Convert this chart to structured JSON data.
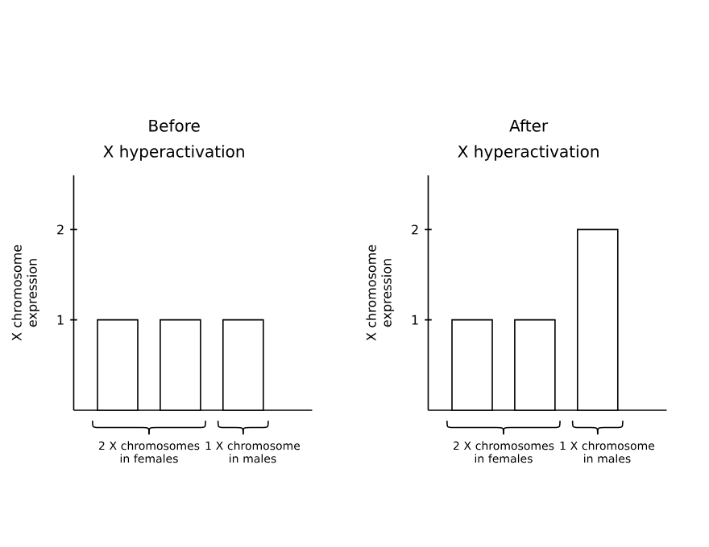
{
  "chart_data": [
    {
      "type": "bar",
      "title": "Before",
      "subtitle": "X hyperactivation",
      "ylabel": "X chromosome expression",
      "categories": [
        null,
        null,
        null
      ],
      "values": [
        1,
        1,
        1
      ],
      "color": "#ffffff",
      "ylim": [
        0,
        2.6
      ],
      "yticks": [
        1,
        2
      ],
      "annotations": [
        "2 X chromosomes in females",
        "1 X chromosome in males"
      ]
    },
    {
      "type": "bar",
      "title": "After",
      "subtitle": "X hyperactivation",
      "ylabel": "X chromosome expression",
      "categories": [
        null,
        null,
        null
      ],
      "values": [
        1,
        1,
        2
      ],
      "color": "#ffffff",
      "ylim": [
        0,
        2.6
      ],
      "yticks": [
        1,
        2
      ],
      "annotations": [
        "2 X chromosomes in females",
        "1 X chromosome in males"
      ]
    }
  ]
}
